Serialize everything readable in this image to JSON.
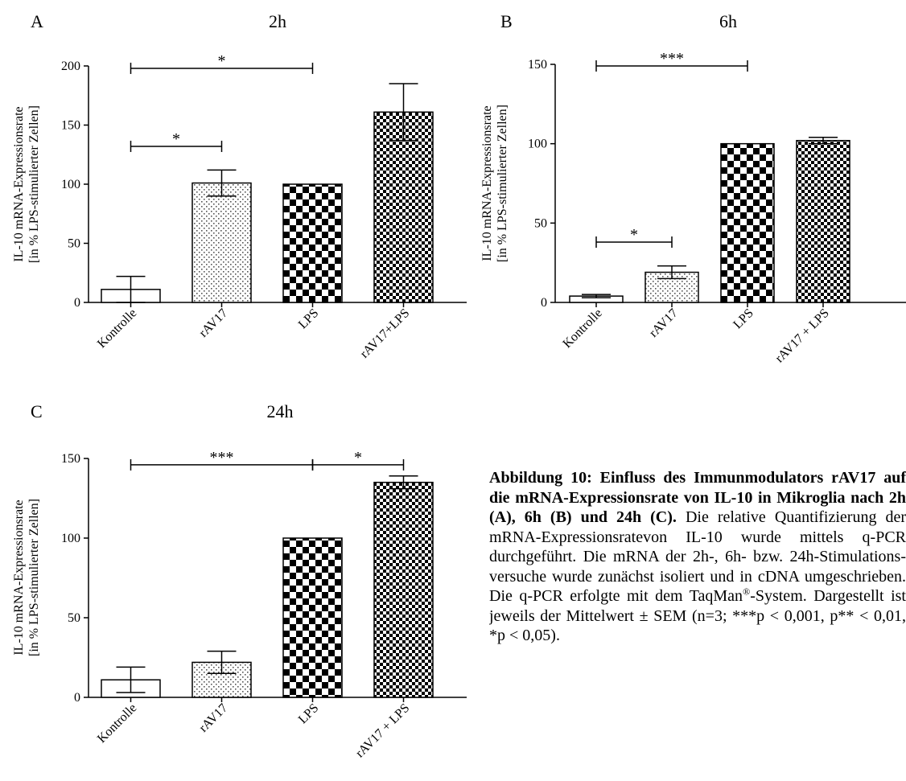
{
  "chart_data": [
    {
      "type": "bar",
      "panel_letter": "A",
      "title": "2h",
      "ylabel_line1": "IL-10 mRNA-Expressionsrate",
      "ylabel_line2": "[in % LPS-stimulierter Zellen]",
      "categories": [
        "Kontrolle",
        "rAV17",
        "LPS",
        "rAV17+LPS"
      ],
      "values": [
        11,
        101,
        100,
        161
      ],
      "errors": [
        11,
        11,
        0,
        24
      ],
      "ylim": [
        0,
        200
      ],
      "yticks": [
        0,
        50,
        100,
        150,
        200
      ],
      "patterns": [
        "none",
        "dots",
        "checker",
        "finecheck"
      ],
      "significance": [
        {
          "from": 0,
          "to": 2,
          "y": 198,
          "label": "*"
        },
        {
          "from": 0,
          "to": 1,
          "y": 132,
          "label": "*"
        }
      ]
    },
    {
      "type": "bar",
      "panel_letter": "B",
      "title": "6h",
      "ylabel_line1": "IL-10 mRNA-Expressionsrate",
      "ylabel_line2": "[in % LPS-stimulierter Zellen]",
      "categories": [
        "Kontrolle",
        "rAV17",
        "LPS",
        "rAV17 + LPS"
      ],
      "values": [
        4,
        19,
        100,
        102
      ],
      "errors": [
        1,
        4,
        0,
        2
      ],
      "ylim": [
        0,
        150
      ],
      "yticks": [
        0,
        50,
        100,
        150
      ],
      "patterns": [
        "none",
        "dots",
        "checker",
        "finecheck"
      ],
      "significance": [
        {
          "from": 0,
          "to": 2,
          "y": 149,
          "label": "***"
        },
        {
          "from": 0,
          "to": 1,
          "y": 38,
          "label": "*"
        }
      ]
    },
    {
      "type": "bar",
      "panel_letter": "C",
      "title": "24h",
      "ylabel_line1": "IL-10 mRNA-Expressionsrate",
      "ylabel_line2": "[in % LPS-stimulierter Zellen]",
      "categories": [
        "Kontrolle",
        "rAV17",
        "LPS",
        "rAV17 + LPS"
      ],
      "values": [
        11,
        22,
        100,
        135
      ],
      "errors": [
        8,
        7,
        0,
        4
      ],
      "ylim": [
        0,
        150
      ],
      "yticks": [
        0,
        50,
        100,
        150
      ],
      "patterns": [
        "none",
        "dots",
        "checker",
        "finecheck"
      ],
      "significance": [
        {
          "from": 0,
          "to": 2,
          "y": 146,
          "label": "***"
        },
        {
          "from": 2,
          "to": 3,
          "y": 146,
          "label": "*"
        }
      ]
    }
  ],
  "caption": {
    "bold": "Abbildung 10: Einfluss des Immunmodulators rAV17 auf die mRNA-Expressionsrate von IL-10 in Mikroglia nach 2h (A), 6h (B) und 24h (C).",
    "text_before_sup": " Die relative Quantifizierung der mRNA-Expressionsratevon IL-10 wurde mittels q-PCR durchgeführt. Die mRNA der 2h-, 6h- bzw. 24h-Stimulations-versuche wurde zunächst isoliert und in cDNA umgeschrieben. Die q-PCR erfolgte mit dem TaqMan",
    "sup": "®",
    "text_after_sup": "-System. Dargestellt ist jeweils der Mittelwert ± SEM (n=3; ***p < 0,001, p** < 0,01, *p < 0,05)."
  }
}
